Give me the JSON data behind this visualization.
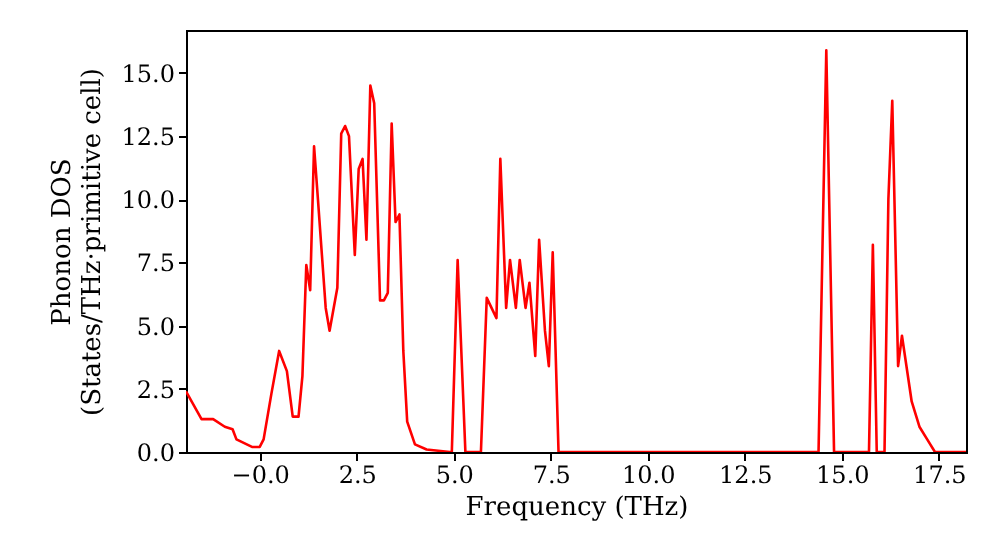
{
  "chart_data": {
    "type": "line",
    "xlabel": "Frequency (THz)",
    "ylabel": "Phonon DOS\n(States/THz·primitive cell)",
    "x": [
      -1.9,
      -1.5,
      -1.2,
      -0.9,
      -0.7,
      -0.6,
      -0.2,
      0.0,
      0.1,
      0.3,
      0.5,
      0.7,
      0.85,
      1.0,
      1.1,
      1.2,
      1.3,
      1.4,
      1.5,
      1.7,
      1.8,
      2.0,
      2.1,
      2.2,
      2.3,
      2.45,
      2.55,
      2.65,
      2.75,
      2.85,
      2.95,
      3.1,
      3.2,
      3.3,
      3.4,
      3.5,
      3.6,
      3.7,
      3.8,
      4.0,
      4.3,
      4.9,
      4.95,
      5.1,
      5.3,
      5.7,
      5.85,
      6.1,
      6.2,
      6.35,
      6.45,
      6.6,
      6.7,
      6.85,
      6.95,
      7.1,
      7.2,
      7.35,
      7.45,
      7.55,
      7.7,
      14.4,
      14.6,
      14.8,
      15.7,
      15.8,
      15.9,
      16.1,
      16.2,
      16.3,
      16.45,
      16.55,
      16.8,
      17.0,
      17.2,
      17.4,
      18.2
    ],
    "series": [
      {
        "color": "#ff0000",
        "values": [
          2.4,
          1.3,
          1.3,
          1.0,
          0.9,
          0.5,
          0.2,
          0.2,
          0.5,
          2.3,
          4.0,
          3.2,
          1.4,
          1.4,
          3.0,
          7.4,
          6.4,
          12.1,
          10.0,
          5.7,
          4.8,
          6.5,
          12.6,
          12.9,
          12.5,
          7.8,
          11.2,
          11.6,
          8.4,
          14.5,
          13.8,
          6.0,
          6.0,
          6.3,
          13.0,
          9.1,
          9.4,
          4.0,
          1.2,
          0.3,
          0.1,
          0,
          0,
          7.6,
          0,
          0,
          6.1,
          5.3,
          11.6,
          5.7,
          7.6,
          5.7,
          7.6,
          5.7,
          6.7,
          3.8,
          8.4,
          4.8,
          3.4,
          7.9,
          0,
          0,
          15.9,
          0,
          0,
          8.2,
          0,
          0,
          10.0,
          13.9,
          3.4,
          4.6,
          2.0,
          1.0,
          0.5,
          0,
          0
        ]
      }
    ],
    "xlim": [
      -1.9,
      18.2
    ],
    "ylim": [
      0,
      16.7
    ],
    "xticks": [
      {
        "value": 0,
        "label": "−0.0"
      },
      {
        "value": 2.5,
        "label": "2.5"
      },
      {
        "value": 5,
        "label": "5.0"
      },
      {
        "value": 7.5,
        "label": "7.5"
      },
      {
        "value": 10,
        "label": "10.0"
      },
      {
        "value": 12.5,
        "label": "12.5"
      },
      {
        "value": 15,
        "label": "15.0"
      },
      {
        "value": 17.5,
        "label": "17.5"
      }
    ],
    "yticks": [
      {
        "value": 0,
        "label": "0.0"
      },
      {
        "value": 2.5,
        "label": "2.5"
      },
      {
        "value": 5,
        "label": "5.0"
      },
      {
        "value": 7.5,
        "label": "7.5"
      },
      {
        "value": 10,
        "label": "10.0"
      },
      {
        "value": 12.5,
        "label": "12.5"
      },
      {
        "value": 15,
        "label": "15.0"
      }
    ],
    "grid": false
  }
}
